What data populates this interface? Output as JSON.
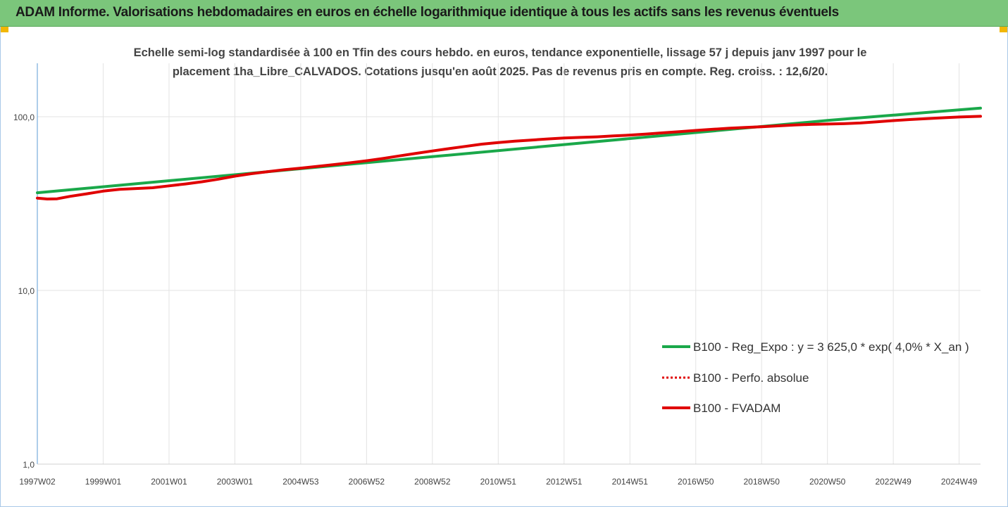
{
  "banner": {
    "title": "ADAM Informe. Valorisations hebdomadaires en euros en échelle logarithmique identique à tous les actifs sans les revenus éventuels"
  },
  "chart_data": {
    "type": "line",
    "title_lines": [
      "Echelle semi-log standardisée à 100 en Tfin des cours hebdo. en euros, tendance exponentielle, lissage 57 j depuis janv 1997 pour le",
      "placement 1ha_Libre_CALVADOS. Cotations jusqu'en août 2025. Pas de revenus pris en compte. Reg. croiss. : 12,6/20."
    ],
    "y_scale": "log",
    "ylim": [
      1,
      200
    ],
    "y_ticks": [
      {
        "value": 1,
        "label": "1,0"
      },
      {
        "value": 10,
        "label": "10,0"
      },
      {
        "value": 100,
        "label": "100,0"
      }
    ],
    "xlim": [
      1997.0,
      2025.65
    ],
    "x_ticks": [
      {
        "value": 1997.0,
        "label": "1997W02"
      },
      {
        "value": 1999.0,
        "label": "1999W01"
      },
      {
        "value": 2001.0,
        "label": "2001W01"
      },
      {
        "value": 2003.0,
        "label": "2003W01"
      },
      {
        "value": 2005.0,
        "label": "2004W53"
      },
      {
        "value": 2007.0,
        "label": "2006W52"
      },
      {
        "value": 2009.0,
        "label": "2008W52"
      },
      {
        "value": 2011.0,
        "label": "2010W51"
      },
      {
        "value": 2013.0,
        "label": "2012W51"
      },
      {
        "value": 2015.0,
        "label": "2014W51"
      },
      {
        "value": 2017.0,
        "label": "2016W50"
      },
      {
        "value": 2019.0,
        "label": "2018W50"
      },
      {
        "value": 2021.0,
        "label": "2020W50"
      },
      {
        "value": 2023.0,
        "label": "2022W49"
      },
      {
        "value": 2025.0,
        "label": "2024W49"
      }
    ],
    "grid": "vertical",
    "legend_position": "bottom-right",
    "series": [
      {
        "name": "B100 - Reg_Expo : y = 3 625,0 * exp( 4,0% *  X_an )",
        "color": "#1aa84a",
        "style": "solid",
        "x": [
          1997.0,
          2001.0,
          2005.0,
          2009.0,
          2013.0,
          2017.0,
          2021.0,
          2025.65
        ],
        "y": [
          36.5,
          42.8,
          50.2,
          58.9,
          69.1,
          81.1,
          95.2,
          112.0
        ]
      },
      {
        "name": "B100 - Perfo. absolue",
        "color": "#e00000",
        "style": "dotted",
        "x": [],
        "y": []
      },
      {
        "name": "B100 - FVADAM",
        "color": "#e00000",
        "style": "solid",
        "x": [
          1997.0,
          1997.3,
          1997.6,
          1998.0,
          1998.5,
          1999.0,
          1999.5,
          2000.0,
          2000.5,
          2001.0,
          2001.5,
          2002.0,
          2002.5,
          2003.0,
          2003.5,
          2004.0,
          2004.5,
          2005.0,
          2005.5,
          2006.0,
          2006.5,
          2007.0,
          2007.5,
          2008.0,
          2008.5,
          2009.0,
          2009.5,
          2010.0,
          2010.5,
          2011.0,
          2011.5,
          2012.0,
          2012.5,
          2013.0,
          2013.5,
          2014.0,
          2014.5,
          2015.0,
          2015.5,
          2016.0,
          2016.5,
          2017.0,
          2017.5,
          2018.0,
          2018.5,
          2019.0,
          2019.5,
          2020.0,
          2020.5,
          2021.0,
          2021.5,
          2022.0,
          2022.5,
          2023.0,
          2023.5,
          2024.0,
          2024.5,
          2025.0,
          2025.65
        ],
        "y": [
          34.0,
          33.6,
          33.7,
          34.8,
          36.0,
          37.3,
          38.2,
          38.6,
          39.0,
          40.0,
          41.0,
          42.2,
          43.7,
          45.5,
          47.0,
          48.3,
          49.5,
          50.6,
          51.8,
          53.0,
          54.3,
          55.8,
          57.5,
          59.5,
          61.5,
          63.5,
          65.5,
          67.5,
          69.5,
          71.0,
          72.3,
          73.4,
          74.5,
          75.4,
          76.0,
          76.6,
          77.5,
          78.4,
          79.5,
          80.8,
          82.0,
          83.4,
          84.6,
          85.8,
          86.8,
          87.6,
          88.6,
          89.6,
          90.3,
          90.8,
          91.2,
          92.0,
          93.5,
          95.0,
          96.3,
          97.4,
          98.6,
          99.6,
          100.6
        ]
      }
    ]
  }
}
